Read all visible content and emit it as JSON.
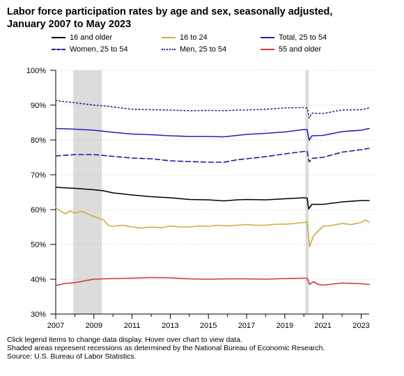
{
  "title_line1": "Labor force participation rates by age and sex, seasonally adjusted,",
  "title_line2": "January 2007 to May 2023",
  "notes": [
    "Click legend items to change data display. Hover over chart to view data.",
    "Shaded areas represent recessions as determined by the National Bureau of Economic Research.",
    "Source: U.S. Bureau of Labor Statistics."
  ],
  "chart_data": {
    "type": "line",
    "x_unit": "year",
    "xlim": [
      2007.0,
      2023.42
    ],
    "ylim": [
      30,
      100
    ],
    "x_ticks": [
      "2007",
      "2009",
      "2011",
      "2013",
      "2015",
      "2017",
      "2019",
      "2021",
      "2023"
    ],
    "y_ticks": [
      "30%",
      "40%",
      "50%",
      "60%",
      "70%",
      "80%",
      "90%",
      "100%"
    ],
    "grid": "horizontal dotted",
    "recessions": [
      {
        "start": 2007.92,
        "end": 2009.42
      },
      {
        "start": 2020.08,
        "end": 2020.25
      }
    ],
    "series": [
      {
        "name": "16 and older",
        "color": "#000000",
        "dash": "solid",
        "points": [
          [
            2007.0,
            66.4
          ],
          [
            2008.0,
            66.1
          ],
          [
            2009.0,
            65.7
          ],
          [
            2009.5,
            65.4
          ],
          [
            2010.0,
            64.8
          ],
          [
            2011.0,
            64.2
          ],
          [
            2012.0,
            63.7
          ],
          [
            2013.0,
            63.4
          ],
          [
            2014.0,
            62.9
          ],
          [
            2015.0,
            62.8
          ],
          [
            2015.8,
            62.5
          ],
          [
            2016.5,
            62.8
          ],
          [
            2017.0,
            62.9
          ],
          [
            2018.0,
            62.8
          ],
          [
            2019.0,
            63.1
          ],
          [
            2020.0,
            63.4
          ],
          [
            2020.17,
            63.3
          ],
          [
            2020.25,
            60.2
          ],
          [
            2020.42,
            61.5
          ],
          [
            2021.0,
            61.5
          ],
          [
            2022.0,
            62.2
          ],
          [
            2023.0,
            62.6
          ],
          [
            2023.42,
            62.6
          ]
        ]
      },
      {
        "name": "16 to 24",
        "color": "#d4a83a",
        "dash": "solid",
        "points": [
          [
            2007.0,
            60.6
          ],
          [
            2007.25,
            59.5
          ],
          [
            2007.5,
            58.8
          ],
          [
            2007.75,
            59.6
          ],
          [
            2008.0,
            59.0
          ],
          [
            2008.33,
            59.5
          ],
          [
            2008.67,
            58.8
          ],
          [
            2009.0,
            58.0
          ],
          [
            2009.5,
            57.0
          ],
          [
            2009.75,
            55.5
          ],
          [
            2010.0,
            55.2
          ],
          [
            2010.5,
            55.5
          ],
          [
            2011.0,
            55.0
          ],
          [
            2011.5,
            54.7
          ],
          [
            2012.0,
            55.0
          ],
          [
            2012.5,
            54.8
          ],
          [
            2013.0,
            55.3
          ],
          [
            2013.5,
            55.0
          ],
          [
            2014.0,
            55.0
          ],
          [
            2014.5,
            55.3
          ],
          [
            2015.0,
            55.2
          ],
          [
            2015.5,
            55.5
          ],
          [
            2016.0,
            55.3
          ],
          [
            2016.5,
            55.5
          ],
          [
            2017.0,
            55.7
          ],
          [
            2017.5,
            55.5
          ],
          [
            2018.0,
            55.5
          ],
          [
            2018.5,
            55.8
          ],
          [
            2019.0,
            55.8
          ],
          [
            2019.5,
            56.0
          ],
          [
            2020.0,
            56.3
          ],
          [
            2020.17,
            56.5
          ],
          [
            2020.3,
            49.3
          ],
          [
            2020.5,
            52.5
          ],
          [
            2021.0,
            55.2
          ],
          [
            2021.5,
            55.5
          ],
          [
            2022.0,
            56.0
          ],
          [
            2022.5,
            55.7
          ],
          [
            2023.0,
            56.3
          ],
          [
            2023.2,
            57.0
          ],
          [
            2023.42,
            56.4
          ]
        ]
      },
      {
        "name": "Total, 25 to 54",
        "color": "#1f1fc7",
        "dash": "solid",
        "points": [
          [
            2007.0,
            83.3
          ],
          [
            2008.0,
            83.1
          ],
          [
            2009.0,
            82.8
          ],
          [
            2009.5,
            82.5
          ],
          [
            2010.0,
            82.2
          ],
          [
            2011.0,
            81.7
          ],
          [
            2012.0,
            81.5
          ],
          [
            2013.0,
            81.2
          ],
          [
            2014.0,
            81.0
          ],
          [
            2015.0,
            81.0
          ],
          [
            2015.8,
            80.9
          ],
          [
            2016.5,
            81.3
          ],
          [
            2017.0,
            81.6
          ],
          [
            2018.0,
            81.9
          ],
          [
            2019.0,
            82.3
          ],
          [
            2020.0,
            83.0
          ],
          [
            2020.17,
            83.0
          ],
          [
            2020.28,
            79.9
          ],
          [
            2020.42,
            81.2
          ],
          [
            2021.0,
            81.3
          ],
          [
            2022.0,
            82.4
          ],
          [
            2023.0,
            82.8
          ],
          [
            2023.42,
            83.3
          ]
        ]
      },
      {
        "name": "Women, 25 to 54",
        "color": "#1b1ba0",
        "dash": "dashed",
        "points": [
          [
            2007.0,
            75.4
          ],
          [
            2008.0,
            75.8
          ],
          [
            2009.0,
            75.8
          ],
          [
            2010.0,
            75.3
          ],
          [
            2011.0,
            74.8
          ],
          [
            2012.0,
            74.6
          ],
          [
            2013.0,
            74.0
          ],
          [
            2014.0,
            73.8
          ],
          [
            2015.0,
            73.6
          ],
          [
            2015.8,
            73.6
          ],
          [
            2016.5,
            74.3
          ],
          [
            2017.0,
            74.6
          ],
          [
            2018.0,
            75.2
          ],
          [
            2019.0,
            76.0
          ],
          [
            2020.0,
            76.7
          ],
          [
            2020.17,
            76.8
          ],
          [
            2020.28,
            73.7
          ],
          [
            2020.42,
            74.7
          ],
          [
            2021.0,
            75.0
          ],
          [
            2022.0,
            76.5
          ],
          [
            2023.0,
            77.2
          ],
          [
            2023.42,
            77.6
          ]
        ]
      },
      {
        "name": "Men, 25 to 54",
        "color": "#1b1ba0",
        "dash": "dotted",
        "points": [
          [
            2007.0,
            91.3
          ],
          [
            2008.0,
            90.7
          ],
          [
            2009.0,
            90.0
          ],
          [
            2009.5,
            89.8
          ],
          [
            2010.0,
            89.5
          ],
          [
            2011.0,
            88.8
          ],
          [
            2012.0,
            88.7
          ],
          [
            2013.0,
            88.6
          ],
          [
            2014.0,
            88.4
          ],
          [
            2015.0,
            88.5
          ],
          [
            2015.8,
            88.4
          ],
          [
            2016.5,
            88.6
          ],
          [
            2017.0,
            88.6
          ],
          [
            2018.0,
            88.8
          ],
          [
            2019.0,
            89.2
          ],
          [
            2020.0,
            89.3
          ],
          [
            2020.17,
            89.2
          ],
          [
            2020.28,
            86.3
          ],
          [
            2020.42,
            87.7
          ],
          [
            2021.0,
            87.6
          ],
          [
            2022.0,
            88.6
          ],
          [
            2023.0,
            88.7
          ],
          [
            2023.42,
            89.2
          ]
        ]
      },
      {
        "name": "55 and older",
        "color": "#d9333b",
        "dash": "solid",
        "points": [
          [
            2007.0,
            38.2
          ],
          [
            2007.5,
            38.8
          ],
          [
            2008.0,
            39.0
          ],
          [
            2009.0,
            40.0
          ],
          [
            2010.0,
            40.2
          ],
          [
            2011.0,
            40.3
          ],
          [
            2012.0,
            40.5
          ],
          [
            2013.0,
            40.4
          ],
          [
            2014.0,
            40.1
          ],
          [
            2015.0,
            40.0
          ],
          [
            2016.0,
            40.1
          ],
          [
            2017.0,
            40.1
          ],
          [
            2018.0,
            40.0
          ],
          [
            2019.0,
            40.2
          ],
          [
            2020.0,
            40.3
          ],
          [
            2020.17,
            40.3
          ],
          [
            2020.3,
            38.5
          ],
          [
            2020.5,
            39.3
          ],
          [
            2020.75,
            38.5
          ],
          [
            2021.0,
            38.3
          ],
          [
            2022.0,
            38.9
          ],
          [
            2023.0,
            38.7
          ],
          [
            2023.42,
            38.5
          ]
        ]
      }
    ]
  }
}
